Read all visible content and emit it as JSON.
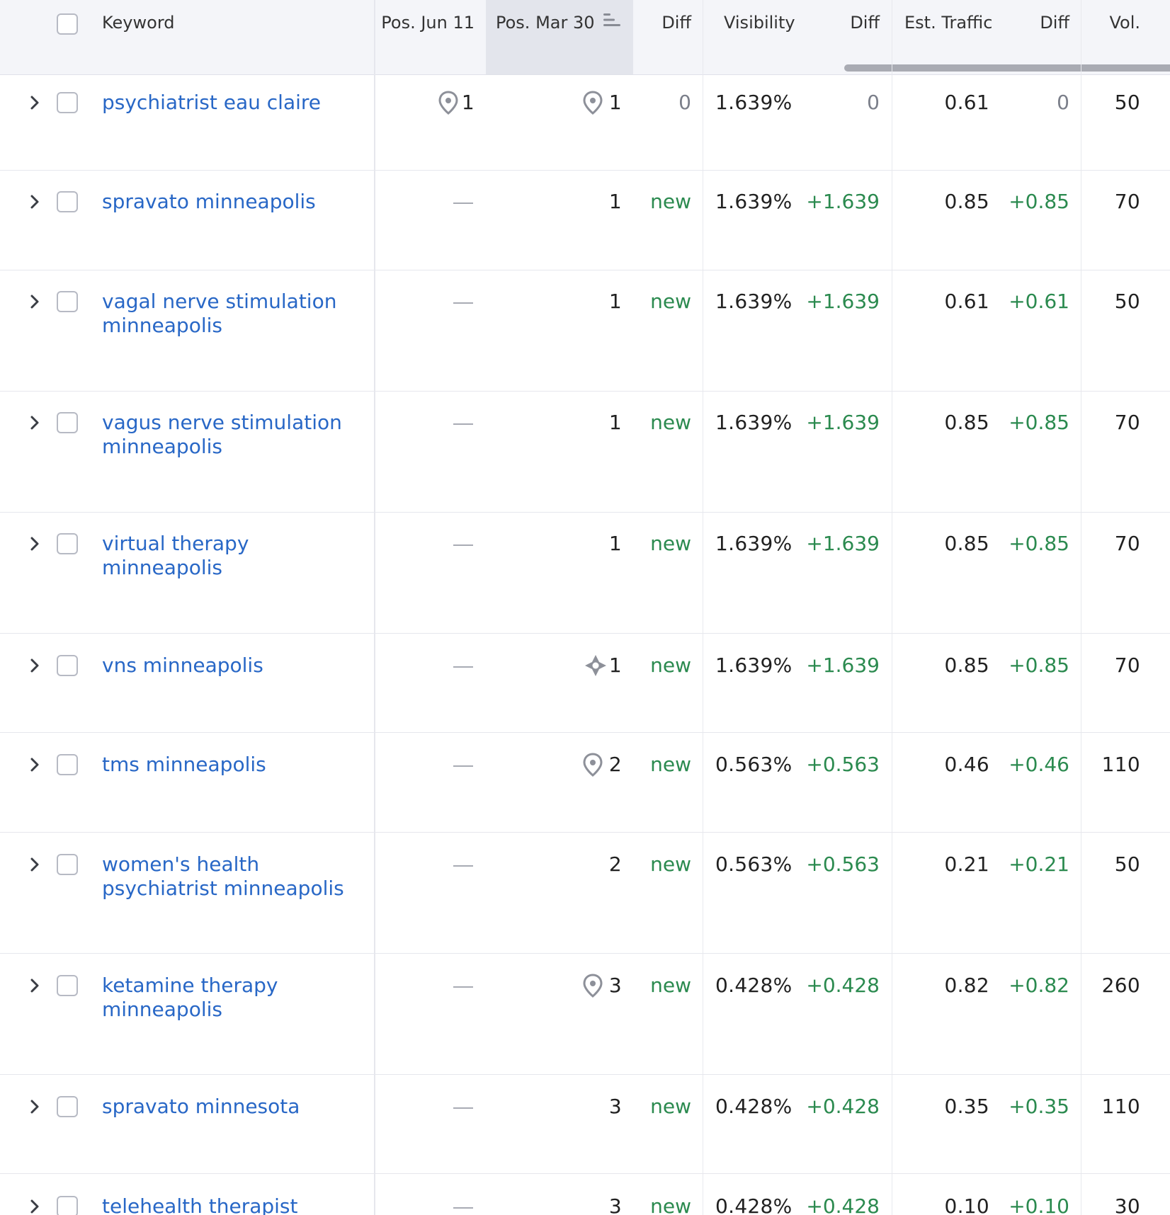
{
  "header": {
    "keyword": "Keyword",
    "pos_current": "Pos. Jun 11",
    "pos_previous": "Pos. Mar 30",
    "diff_pos": "Diff",
    "visibility": "Visibility",
    "diff_visibility": "Diff",
    "est_traffic": "Est. Traffic",
    "diff_traffic": "Diff",
    "volume": "Vol."
  },
  "rows": [
    {
      "keyword": "psychiatrist eau claire",
      "pos_current": "1",
      "pos_previous": "1",
      "pos_diff": "0",
      "visibility": "1.639%",
      "vis_diff": "0",
      "traffic": "0.61",
      "traffic_diff": "0",
      "volume": "50",
      "current_icon": "location-pin-icon",
      "previous_icon": "location-pin-icon"
    },
    {
      "keyword": "spravato minneapolis",
      "pos_current": "",
      "pos_previous": "1",
      "pos_diff": "new",
      "visibility": "1.639%",
      "vis_diff": "+1.639",
      "traffic": "0.85",
      "traffic_diff": "+0.85",
      "volume": "70",
      "current_icon": "",
      "previous_icon": ""
    },
    {
      "keyword": "vagal nerve stimulation minneapolis",
      "pos_current": "",
      "pos_previous": "1",
      "pos_diff": "new",
      "visibility": "1.639%",
      "vis_diff": "+1.639",
      "traffic": "0.61",
      "traffic_diff": "+0.61",
      "volume": "50",
      "current_icon": "",
      "previous_icon": ""
    },
    {
      "keyword": "vagus nerve stimulation minneapolis",
      "pos_current": "",
      "pos_previous": "1",
      "pos_diff": "new",
      "visibility": "1.639%",
      "vis_diff": "+1.639",
      "traffic": "0.85",
      "traffic_diff": "+0.85",
      "volume": "70",
      "current_icon": "",
      "previous_icon": ""
    },
    {
      "keyword": "virtual therapy minneapolis",
      "pos_current": "",
      "pos_previous": "1",
      "pos_diff": "new",
      "visibility": "1.639%",
      "vis_diff": "+1.639",
      "traffic": "0.85",
      "traffic_diff": "+0.85",
      "volume": "70",
      "current_icon": "",
      "previous_icon": ""
    },
    {
      "keyword": "vns minneapolis",
      "pos_current": "",
      "pos_previous": "1",
      "pos_diff": "new",
      "visibility": "1.639%",
      "vis_diff": "+1.639",
      "traffic": "0.85",
      "traffic_diff": "+0.85",
      "volume": "70",
      "current_icon": "",
      "previous_icon": "featured-snippet-icon"
    },
    {
      "keyword": "tms minneapolis",
      "pos_current": "",
      "pos_previous": "2",
      "pos_diff": "new",
      "visibility": "0.563%",
      "vis_diff": "+0.563",
      "traffic": "0.46",
      "traffic_diff": "+0.46",
      "volume": "110",
      "current_icon": "",
      "previous_icon": "location-pin-icon"
    },
    {
      "keyword": "women's health psychiatrist minneapolis",
      "pos_current": "",
      "pos_previous": "2",
      "pos_diff": "new",
      "visibility": "0.563%",
      "vis_diff": "+0.563",
      "traffic": "0.21",
      "traffic_diff": "+0.21",
      "volume": "50",
      "current_icon": "",
      "previous_icon": ""
    },
    {
      "keyword": "ketamine therapy minneapolis",
      "pos_current": "",
      "pos_previous": "3",
      "pos_diff": "new",
      "visibility": "0.428%",
      "vis_diff": "+0.428",
      "traffic": "0.82",
      "traffic_diff": "+0.82",
      "volume": "260",
      "current_icon": "",
      "previous_icon": "location-pin-icon"
    },
    {
      "keyword": "spravato minnesota",
      "pos_current": "",
      "pos_previous": "3",
      "pos_diff": "new",
      "visibility": "0.428%",
      "vis_diff": "+0.428",
      "traffic": "0.35",
      "traffic_diff": "+0.35",
      "volume": "110",
      "current_icon": "",
      "previous_icon": ""
    },
    {
      "keyword": "telehealth therapist",
      "pos_current": "",
      "pos_previous": "3",
      "pos_diff": "new",
      "visibility": "0.428%",
      "vis_diff": "+0.428",
      "traffic": "0.10",
      "traffic_diff": "+0.10",
      "volume": "30",
      "current_icon": "",
      "previous_icon": ""
    }
  ],
  "colors": {
    "link": "#2867c6",
    "positive": "#2b8a4f",
    "neutral": "#7b7f8a",
    "header_bg": "#f4f5f9",
    "sorted_bg": "#e3e5ec"
  }
}
